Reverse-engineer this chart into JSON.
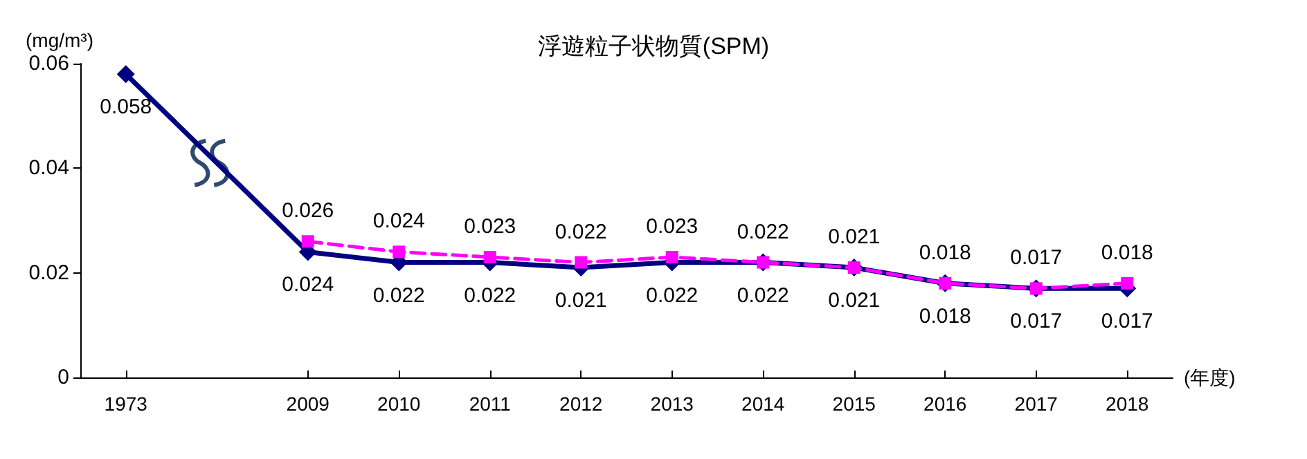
{
  "chart_data": {
    "type": "line",
    "title": "浮遊粒子状物質(SPM)",
    "ylabel": "(mg/m³)",
    "xlabel": "(年度)",
    "categories": [
      "1973",
      null,
      "2009",
      "2010",
      "2011",
      "2012",
      "2013",
      "2014",
      "2015",
      "2016",
      "2017",
      "2018"
    ],
    "series": [
      {
        "color": "#000080",
        "marker": "diamond",
        "line_style": "solid",
        "values": [
          0.058,
          null,
          0.024,
          0.022,
          0.022,
          0.021,
          0.022,
          0.022,
          0.021,
          0.018,
          0.017,
          0.017
        ]
      },
      {
        "color": "#ff00ff",
        "marker": "square",
        "line_style": "dashed",
        "values": [
          null,
          null,
          0.026,
          0.024,
          0.023,
          0.022,
          0.023,
          0.022,
          0.021,
          0.018,
          0.017,
          0.018
        ]
      }
    ],
    "ylim": [
      0,
      0.06
    ],
    "yticks": [
      0,
      0.02,
      0.04,
      0.06
    ],
    "grid": false,
    "data_labels": true
  }
}
